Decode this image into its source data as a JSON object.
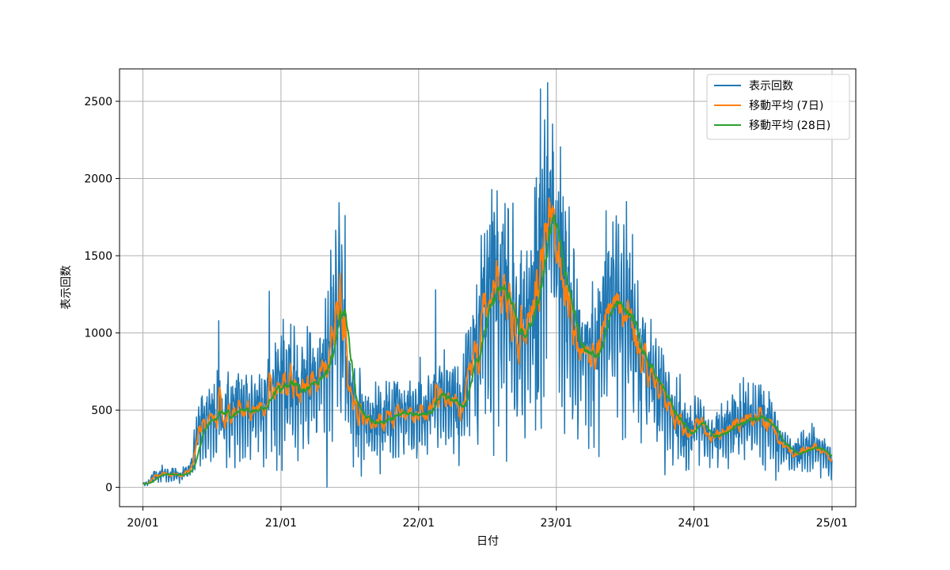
{
  "chart_data": {
    "type": "line",
    "xlabel": "日付",
    "ylabel": "表示回数",
    "x_tick_labels": [
      "20/01",
      "21/01",
      "22/01",
      "23/01",
      "24/01",
      "25/01"
    ],
    "x_ticks": [
      "2020-01-01",
      "2021-01-01",
      "2022-01-01",
      "2023-01-01",
      "2024-01-01",
      "2025-01-01"
    ],
    "xlim": [
      "2019-10-31",
      "2025-03-05"
    ],
    "y_ticks": [
      0,
      500,
      1000,
      1500,
      2000,
      2500
    ],
    "ylim": [
      -125,
      2710
    ],
    "grid": true,
    "legend_position": "top-right",
    "date_range": [
      "2020-01-01",
      "2025-01-01"
    ],
    "sampling": "daily",
    "series": [
      {
        "name": "表示回数",
        "color": "#1f77b4"
      },
      {
        "name": "移動平均 (7日)",
        "color": "#ff7f0e"
      },
      {
        "name": "移動平均 (28日)",
        "color": "#2ca02c"
      }
    ],
    "trend_28day": {
      "x": [
        "2020-01-01",
        "2020-02-15",
        "2020-04-01",
        "2020-05-01",
        "2020-06-01",
        "2020-08-01",
        "2020-10-01",
        "2020-12-01",
        "2021-01-01",
        "2021-02-01",
        "2021-03-01",
        "2021-04-01",
        "2021-05-01",
        "2021-06-01",
        "2021-07-01",
        "2021-08-01",
        "2021-09-01",
        "2021-10-01",
        "2021-11-01",
        "2021-12-15",
        "2022-01-15",
        "2022-02-15",
        "2022-03-15",
        "2022-04-15",
        "2022-05-15",
        "2022-06-15",
        "2022-07-15",
        "2022-08-15",
        "2022-09-15",
        "2022-10-15",
        "2022-11-15",
        "2022-12-15",
        "2023-01-15",
        "2023-02-15",
        "2023-03-15",
        "2023-04-15",
        "2023-05-15",
        "2023-06-15",
        "2023-07-15",
        "2023-08-15",
        "2023-09-15",
        "2023-10-15",
        "2023-11-15",
        "2023-12-15",
        "2024-01-15",
        "2024-02-15",
        "2024-03-15",
        "2024-04-15",
        "2024-05-15",
        "2024-06-15",
        "2024-07-15",
        "2024-08-15",
        "2024-09-15",
        "2024-10-15",
        "2024-11-15",
        "2024-12-15",
        "2025-01-01"
      ],
      "y": [
        20,
        90,
        80,
        100,
        390,
        470,
        490,
        580,
        700,
        630,
        640,
        650,
        880,
        1200,
        620,
        460,
        400,
        420,
        480,
        490,
        470,
        520,
        560,
        500,
        700,
        1100,
        1350,
        1300,
        1050,
        1020,
        1450,
        1600,
        1400,
        950,
        800,
        850,
        1150,
        1200,
        1100,
        870,
        680,
        550,
        470,
        370,
        400,
        310,
        320,
        400,
        430,
        450,
        420,
        280,
        220,
        230,
        250,
        230,
        160
      ]
    },
    "peaks": [
      {
        "x": "2020-07-20",
        "y": 1080
      },
      {
        "x": "2020-12-01",
        "y": 1270
      },
      {
        "x": "2021-06-20",
        "y": 1760
      },
      {
        "x": "2022-02-15",
        "y": 1280
      },
      {
        "x": "2022-11-20",
        "y": 2580
      },
      {
        "x": "2022-12-01",
        "y": 2380
      }
    ]
  }
}
